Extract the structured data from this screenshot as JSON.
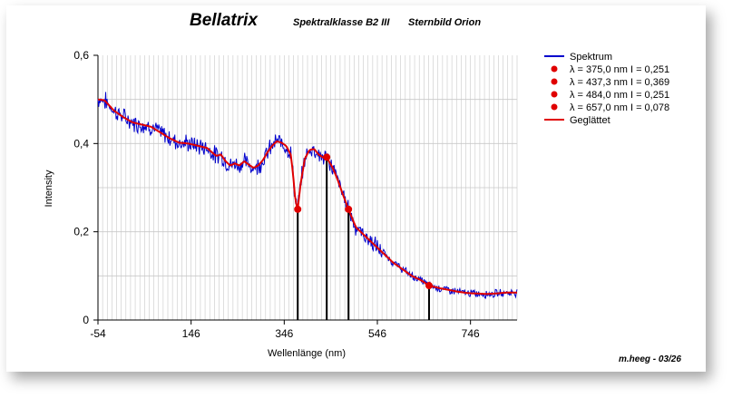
{
  "header": {
    "title": "Bellatrix",
    "spectral_class": "Spektralklasse B2 III",
    "constellation": "Sternbild Orion"
  },
  "footer": {
    "credit": "m.heeg - 03/26"
  },
  "colors": {
    "spectrum": "#0000cc",
    "smoothed": "#e00000",
    "marker": "#e00000",
    "grid": "#c8c8c8"
  },
  "chart_data": {
    "type": "line",
    "xlabel": "Wellenlänge (nm)",
    "ylabel": "Intensity",
    "xlim": [
      -54,
      846
    ],
    "ylim": [
      0,
      0.6
    ],
    "x_ticks": [
      -54,
      146,
      346,
      546,
      746
    ],
    "y_ticks": [
      0,
      0.2,
      0.4,
      0.6
    ],
    "y_tick_labels": [
      "0",
      "0,2",
      "0,4",
      "0,6"
    ],
    "grid": true,
    "legend_position": "right",
    "legend": {
      "spectrum": "Spektrum",
      "smoothed": "Geglättet",
      "lines": [
        "λ = 375,0 nm    I = 0,251",
        "λ = 437,3 nm    I = 0,369",
        "λ = 484,0 nm    I = 0,251",
        "λ = 657,0 nm    I = 0,078"
      ]
    },
    "markers": [
      {
        "x": 375.0,
        "y": 0.251
      },
      {
        "x": 437.3,
        "y": 0.369
      },
      {
        "x": 484.0,
        "y": 0.251
      },
      {
        "x": 657.0,
        "y": 0.078
      }
    ],
    "series": [
      {
        "name": "Geglättet",
        "x": [
          -54,
          -40,
          -20,
          0,
          20,
          40,
          60,
          80,
          100,
          120,
          140,
          160,
          180,
          200,
          210,
          220,
          230,
          240,
          250,
          260,
          270,
          280,
          290,
          300,
          310,
          320,
          330,
          340,
          350,
          360,
          365,
          370,
          375,
          380,
          390,
          400,
          410,
          420,
          430,
          437,
          450,
          460,
          470,
          484,
          500,
          520,
          540,
          560,
          580,
          600,
          620,
          640,
          657,
          680,
          700,
          720,
          740,
          760,
          780,
          800,
          820,
          846
        ],
        "values": [
          0.5,
          0.498,
          0.475,
          0.46,
          0.448,
          0.443,
          0.438,
          0.425,
          0.412,
          0.402,
          0.4,
          0.395,
          0.39,
          0.372,
          0.375,
          0.36,
          0.35,
          0.355,
          0.35,
          0.36,
          0.352,
          0.345,
          0.35,
          0.362,
          0.38,
          0.395,
          0.405,
          0.402,
          0.395,
          0.375,
          0.33,
          0.27,
          0.251,
          0.3,
          0.365,
          0.385,
          0.388,
          0.375,
          0.368,
          0.369,
          0.345,
          0.32,
          0.29,
          0.251,
          0.21,
          0.19,
          0.17,
          0.15,
          0.13,
          0.115,
          0.1,
          0.09,
          0.078,
          0.072,
          0.068,
          0.064,
          0.061,
          0.06,
          0.059,
          0.06,
          0.062,
          0.062
        ]
      }
    ]
  }
}
